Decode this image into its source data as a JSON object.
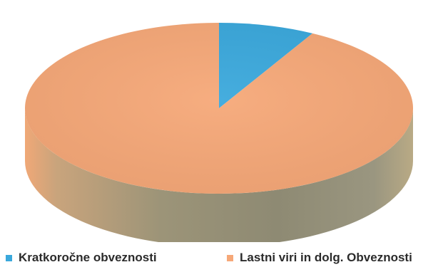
{
  "chart_data": {
    "type": "pie",
    "style": "3d",
    "categories": [
      "Kratkoročne obveznosti",
      "Lastni viri in dolg. Obveznosti"
    ],
    "values": [
      8,
      92
    ],
    "colors": [
      "#3aa8dc",
      "#f6a878"
    ],
    "side_color": "#9a9078",
    "legend": "bottom",
    "start_angle_deg": -90
  }
}
